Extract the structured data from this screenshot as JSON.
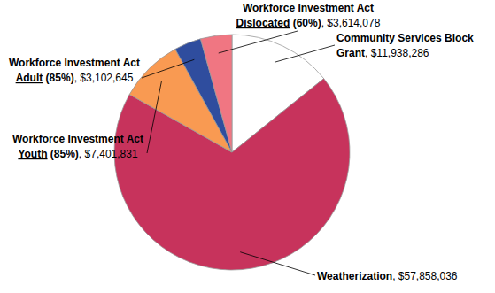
{
  "chart_data": {
    "type": "pie",
    "categories": [
      "Community Services Block Grant",
      "Weatherization",
      "Workforce Investment Act Youth (85%)",
      "Workforce Investment Act Adult (85%)",
      "Workforce Investment Act Dislocated (60%)"
    ],
    "values": [
      11938286,
      57858036,
      7401831,
      3102645,
      3614078
    ],
    "value_labels": [
      "$11,938,286",
      "$57,858,036",
      "$7,401,831",
      "$3,102,645",
      "$3,614,078"
    ],
    "colors": [
      "#ffffff",
      "#c7335c",
      "#f99a52",
      "#2f4d9e",
      "#f07682"
    ],
    "data_labels": true
  }
}
